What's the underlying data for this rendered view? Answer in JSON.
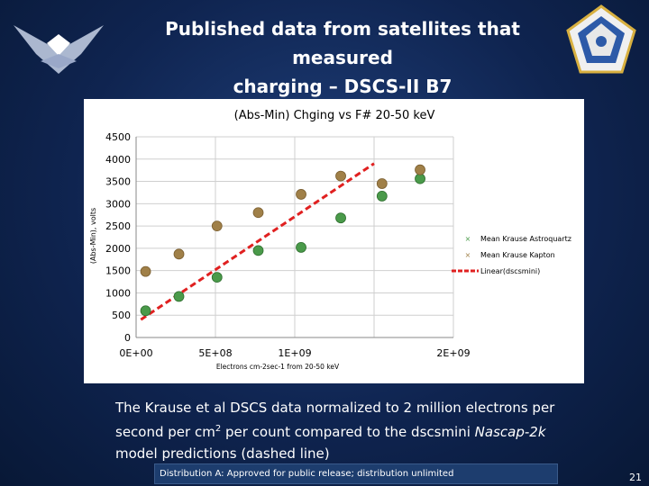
{
  "slide": {
    "title_line1": "Published data from satellites that measured",
    "title_line2": "charging – DSCS-II B7",
    "caption_part1": "The Krause et al DSCS data normalized to 2 million electrons per second per cm",
    "caption_sup": "2",
    "caption_part2": " per count compared to the dscsmini ",
    "caption_italic": "Nascap-2k",
    "caption_part3": " model predictions (dashed line)",
    "footer": "Distribution A: Approved for public release; distribution unlimited",
    "page_number": "21"
  },
  "colors": {
    "astroquartz": "#4a9a4a",
    "kapton": "#a08048",
    "linear": "#e02020",
    "grid": "#cfcfcf"
  },
  "chart_data": {
    "type": "scatter",
    "title": "(Abs-Min) Chging vs F# 20-50 keV",
    "xlabel": "Electrons cm-2sec-1 from 20-50 keV",
    "ylabel": "(Abs-Min), volts",
    "xlim": [
      0,
      2000000000
    ],
    "ylim": [
      0,
      4500
    ],
    "x_ticks": [
      0,
      500000000,
      1000000000,
      1500000000,
      2000000000
    ],
    "x_tick_labels": [
      "0E+00",
      "5E+08",
      "1E+09",
      "",
      "2E+09"
    ],
    "y_ticks": [
      0,
      500,
      1000,
      1500,
      2000,
      2500,
      3000,
      3500,
      4000,
      4500
    ],
    "y_tick_labels": [
      "0",
      "500",
      "1000",
      "1500",
      "2000",
      "2500",
      "3000",
      "3500",
      "4000",
      "4500"
    ],
    "grid": true,
    "legend_position": "right",
    "series": [
      {
        "name": "Mean Krause Astroquartz",
        "x": [
          60000000,
          270000000,
          510000000,
          770000000,
          1040000000,
          1290000000,
          1550000000,
          1790000000
        ],
        "y": [
          600,
          920,
          1350,
          1950,
          2020,
          2680,
          3170,
          3560
        ]
      },
      {
        "name": "Mean Krause Kapton",
        "x": [
          60000000,
          270000000,
          510000000,
          770000000,
          1040000000,
          1290000000,
          1550000000,
          1790000000
        ],
        "y": [
          1480,
          1870,
          2500,
          2800,
          3210,
          3620,
          3450,
          3760
        ]
      },
      {
        "name": "Linear(dscsmini)",
        "style": "dashed-line",
        "x": [
          30000000,
          1500000000
        ],
        "y": [
          400,
          3900
        ]
      }
    ]
  }
}
